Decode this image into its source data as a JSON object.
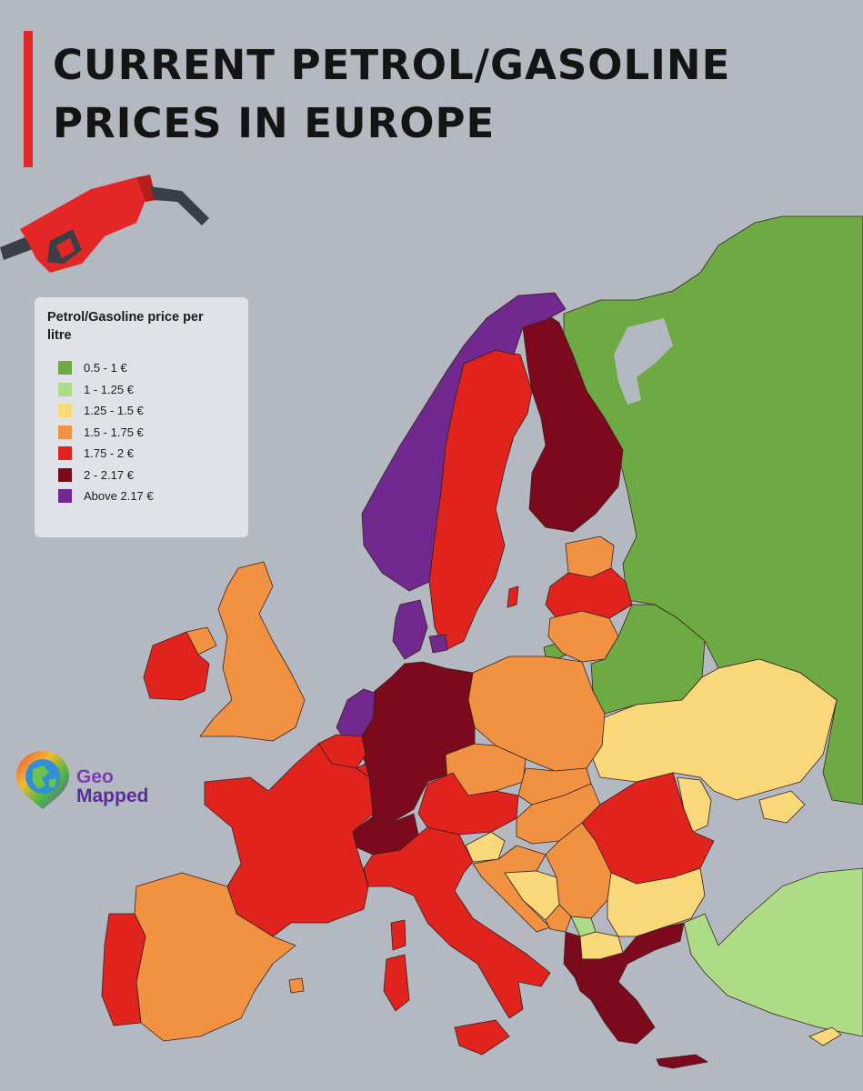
{
  "title": {
    "line1": "CURRENT PETROL/GASOLINE",
    "line2": "PRICES IN EUROPE",
    "accent_color": "#e32727"
  },
  "legend": {
    "title": "Petrol/Gasoline price per litre",
    "items": [
      {
        "label": "0.5 - 1 €",
        "color": "#6daa43"
      },
      {
        "label": "1 - 1.25 €",
        "color": "#aedc86"
      },
      {
        "label": "1.25 - 1.5 €",
        "color": "#f8d878"
      },
      {
        "label": "1.5 - 1.75 €",
        "color": "#f19242"
      },
      {
        "label": "1.75 - 2 €",
        "color": "#e0231d"
      },
      {
        "label": "2 - 2.17 €",
        "color": "#7d0a1c"
      },
      {
        "label": "Above 2.17 €",
        "color": "#71288f"
      }
    ]
  },
  "brand": {
    "line1": "Geo",
    "line2": "Mapped"
  },
  "icons": [
    "fuel-nozzle-icon",
    "globe-pin-icon"
  ],
  "colors": {
    "background": "#b3b8c1",
    "sea": "#b3b8c1",
    "legend_bg": "#dfe2e7"
  }
}
